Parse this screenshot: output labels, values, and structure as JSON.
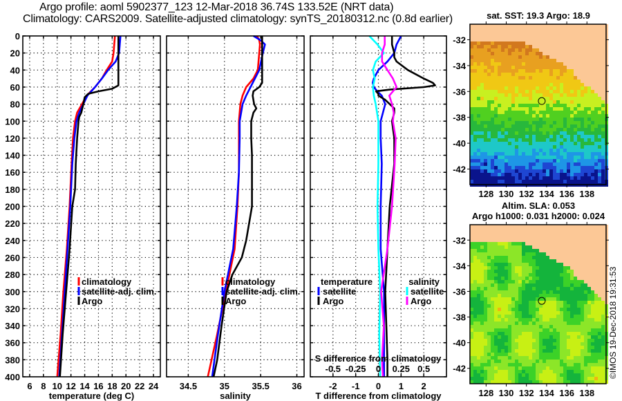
{
  "header": {
    "line1": "Argo profile: aoml 5902377_123 12-Mar-2018 36.74S 133.52E (NRT data)",
    "line2": "Climatology: CARS2009. Satellite-adjusted climatology: synTS_20180312.nc (0.8d earlier)"
  },
  "colors": {
    "climatology": "#ff0000",
    "satellite": "#0000ff",
    "argo": "#000000",
    "sal_satellite": "#00ffff",
    "sal_argo": "#ff00ff",
    "land": "#fcc896"
  },
  "chart_data": [
    {
      "type": "line",
      "name": "temperature-profile",
      "xlabel": "temperature (deg C)",
      "ylabel": "",
      "xlim": [
        5,
        25
      ],
      "ylim": [
        400,
        0
      ],
      "xticks": [
        6,
        8,
        10,
        12,
        14,
        16,
        18,
        20,
        22,
        24
      ],
      "yticks": [
        0,
        20,
        40,
        60,
        80,
        100,
        120,
        140,
        160,
        180,
        200,
        220,
        240,
        260,
        280,
        300,
        320,
        340,
        360,
        380,
        400
      ],
      "grid": true,
      "legend": {
        "placement": "lower-right",
        "entries": [
          "climatology",
          "satellite-adj. clim.",
          "Argo"
        ]
      },
      "series": [
        {
          "name": "climatology",
          "depth": [
            0,
            10,
            20,
            30,
            40,
            50,
            60,
            70,
            80,
            90,
            100,
            120,
            150,
            200,
            250,
            300,
            350,
            400
          ],
          "values": [
            18.4,
            18.3,
            18.2,
            18.0,
            17.2,
            16.5,
            15.5,
            14.3,
            13.6,
            12.9,
            12.6,
            12.3,
            12.1,
            11.8,
            11.4,
            10.9,
            10.5,
            10.0
          ]
        },
        {
          "name": "satellite-adj. clim.",
          "depth": [
            0,
            10,
            20,
            30,
            40,
            50,
            60,
            70,
            80,
            90,
            100,
            120,
            150,
            200,
            250,
            300,
            350,
            400
          ],
          "values": [
            19.2,
            19.1,
            19.0,
            18.5,
            17.4,
            16.5,
            15.5,
            14.4,
            13.8,
            13.2,
            12.8,
            12.5,
            12.2,
            11.9,
            11.5,
            11.1,
            10.7,
            10.3
          ]
        },
        {
          "name": "Argo",
          "depth": [
            0,
            10,
            20,
            30,
            40,
            50,
            58,
            62,
            65,
            68,
            72,
            80,
            90,
            95,
            100,
            120,
            150,
            180,
            200,
            250,
            300,
            350,
            400
          ],
          "values": [
            18.9,
            18.9,
            18.9,
            18.9,
            18.9,
            18.9,
            18.9,
            18.0,
            16.0,
            14.5,
            14.0,
            13.8,
            13.5,
            13.2,
            13.1,
            12.9,
            12.7,
            12.6,
            12.2,
            11.8,
            11.3,
            10.8,
            10.4
          ]
        }
      ]
    },
    {
      "type": "line",
      "name": "salinity-profile",
      "xlabel": "salinity",
      "xlim": [
        34.2,
        36.1
      ],
      "ylim": [
        400,
        0
      ],
      "xticks": [
        34.5,
        35,
        35.5,
        36
      ],
      "grid": true,
      "legend": {
        "placement": "lower-right",
        "entries": [
          "climatology",
          "satellite-adj. clim.",
          "Argo"
        ]
      },
      "series": [
        {
          "name": "climatology",
          "depth": [
            0,
            5,
            10,
            20,
            40,
            50,
            60,
            70,
            80,
            100,
            120,
            160,
            200,
            250,
            300,
            350,
            400
          ],
          "values": [
            35.45,
            35.48,
            35.49,
            35.48,
            35.46,
            35.4,
            35.3,
            35.25,
            35.22,
            35.2,
            35.2,
            35.2,
            35.18,
            35.14,
            35.02,
            34.9,
            34.77
          ]
        },
        {
          "name": "satellite-adj. clim.",
          "depth": [
            0,
            5,
            10,
            20,
            40,
            50,
            60,
            70,
            80,
            100,
            120,
            160,
            200,
            250,
            300,
            350,
            400
          ],
          "values": [
            35.4,
            35.5,
            35.56,
            35.53,
            35.48,
            35.42,
            35.36,
            35.3,
            35.25,
            35.21,
            35.21,
            35.2,
            35.17,
            35.12,
            35.0,
            34.91,
            34.83
          ]
        },
        {
          "name": "Argo",
          "depth": [
            0,
            10,
            20,
            40,
            55,
            60,
            65,
            70,
            80,
            85,
            90,
            100,
            120,
            140,
            160,
            180,
            200,
            220,
            240,
            260,
            280,
            300,
            340,
            380,
            400
          ],
          "values": [
            35.52,
            35.52,
            35.52,
            35.52,
            35.52,
            35.48,
            35.4,
            35.39,
            35.41,
            35.44,
            35.4,
            35.37,
            35.37,
            35.38,
            35.38,
            35.38,
            35.38,
            35.34,
            35.3,
            35.24,
            35.11,
            35.03,
            34.96,
            34.9,
            34.85
          ]
        }
      ]
    },
    {
      "type": "line",
      "name": "difference-profile",
      "xlabel": "T difference from climatology",
      "xlim": [
        -3,
        3
      ],
      "ylim": [
        400,
        0
      ],
      "xticks": [
        -2,
        -1,
        0,
        1,
        2
      ],
      "secondary_xaxis": {
        "label": "S difference from climatology",
        "ticks": [
          -0.5,
          -0.25,
          0,
          0.25,
          0.5
        ]
      },
      "grid": true,
      "legend": {
        "placement": "lower",
        "entries": [
          "temperature",
          "satellite",
          "Argo",
          "salinity",
          "satellite",
          "Argo"
        ]
      },
      "series": [
        {
          "name": "temperature satellite",
          "depth": [
            0,
            10,
            20,
            30,
            40,
            50,
            55,
            60,
            65,
            70,
            80,
            90,
            100,
            120,
            150,
            200,
            250,
            300,
            350,
            400
          ],
          "values": [
            1.0,
            0.8,
            0.7,
            0.4,
            0.0,
            -0.2,
            -0.25,
            -0.2,
            -0.05,
            0.15,
            0.3,
            0.2,
            0.1,
            0.1,
            0.15,
            0.1,
            0.1,
            0.25,
            0.25,
            0.25
          ]
        },
        {
          "name": "temperature Argo",
          "depth": [
            0,
            5,
            10,
            20,
            25,
            30,
            40,
            50,
            55,
            58,
            60,
            63,
            65,
            68,
            70,
            75,
            80,
            85,
            90,
            100,
            120,
            150,
            200,
            250,
            300,
            340,
            380,
            400
          ],
          "values": [
            0.6,
            0.6,
            0.6,
            0.7,
            0.7,
            0.8,
            1.3,
            2.0,
            2.4,
            2.5,
            2.0,
            0.5,
            -0.1,
            0.0,
            0.0,
            0.3,
            0.5,
            0.7,
            0.7,
            0.6,
            0.7,
            0.7,
            0.5,
            0.4,
            0.3,
            0.35,
            0.4,
            0.4
          ]
        },
        {
          "name": "salinity satellite",
          "depth": [
            0,
            10,
            20,
            30,
            40,
            50,
            60,
            70,
            80,
            100,
            150,
            200,
            250,
            300,
            350,
            400
          ],
          "values": [
            -0.1,
            -0.01,
            0.06,
            -0.03,
            -0.06,
            -0.04,
            -0.06,
            -0.05,
            -0.03,
            0.0,
            0.0,
            -0.01,
            0.0,
            0.02,
            0.01,
            0.02
          ]
        },
        {
          "name": "salinity Argo",
          "depth": [
            0,
            10,
            20,
            30,
            40,
            50,
            60,
            70,
            80,
            90,
            100,
            120,
            150,
            200,
            250,
            300,
            340,
            380,
            400
          ],
          "values": [
            0.07,
            0.07,
            0.04,
            0.04,
            0.1,
            0.16,
            0.2,
            0.12,
            0.15,
            0.17,
            0.16,
            0.19,
            0.18,
            0.15,
            0.1,
            0.03,
            0.06,
            0.04,
            0.05
          ]
        }
      ]
    }
  ],
  "maps": {
    "sst": {
      "title": "sat. SST: 19.3 Argo: 18.9",
      "lon_ticks": [
        128,
        130,
        132,
        134,
        136,
        138
      ],
      "lat_ticks": [
        -32,
        -34,
        -36,
        -38,
        -40,
        -42
      ],
      "lon_range": [
        126.4,
        139.9
      ],
      "lat_range": [
        -43.2,
        -30.8
      ],
      "argo_lon": 133.52,
      "argo_lat": -36.74
    },
    "sla": {
      "title1": "Altim. SLA: 0.053",
      "title2": "Argo h1000: 0.031 h2000: 0.024",
      "lon_ticks": [
        128,
        130,
        132,
        134,
        136,
        138
      ],
      "lat_ticks": [
        -32,
        -34,
        -36,
        -38,
        -40,
        -42
      ],
      "lon_range": [
        126.4,
        139.9
      ],
      "lat_range": [
        -43.2,
        -30.8
      ],
      "argo_lon": 133.52,
      "argo_lat": -36.74
    }
  },
  "footer": {
    "credit": "©IMOS 19-Dec-2018 19:31:53"
  }
}
